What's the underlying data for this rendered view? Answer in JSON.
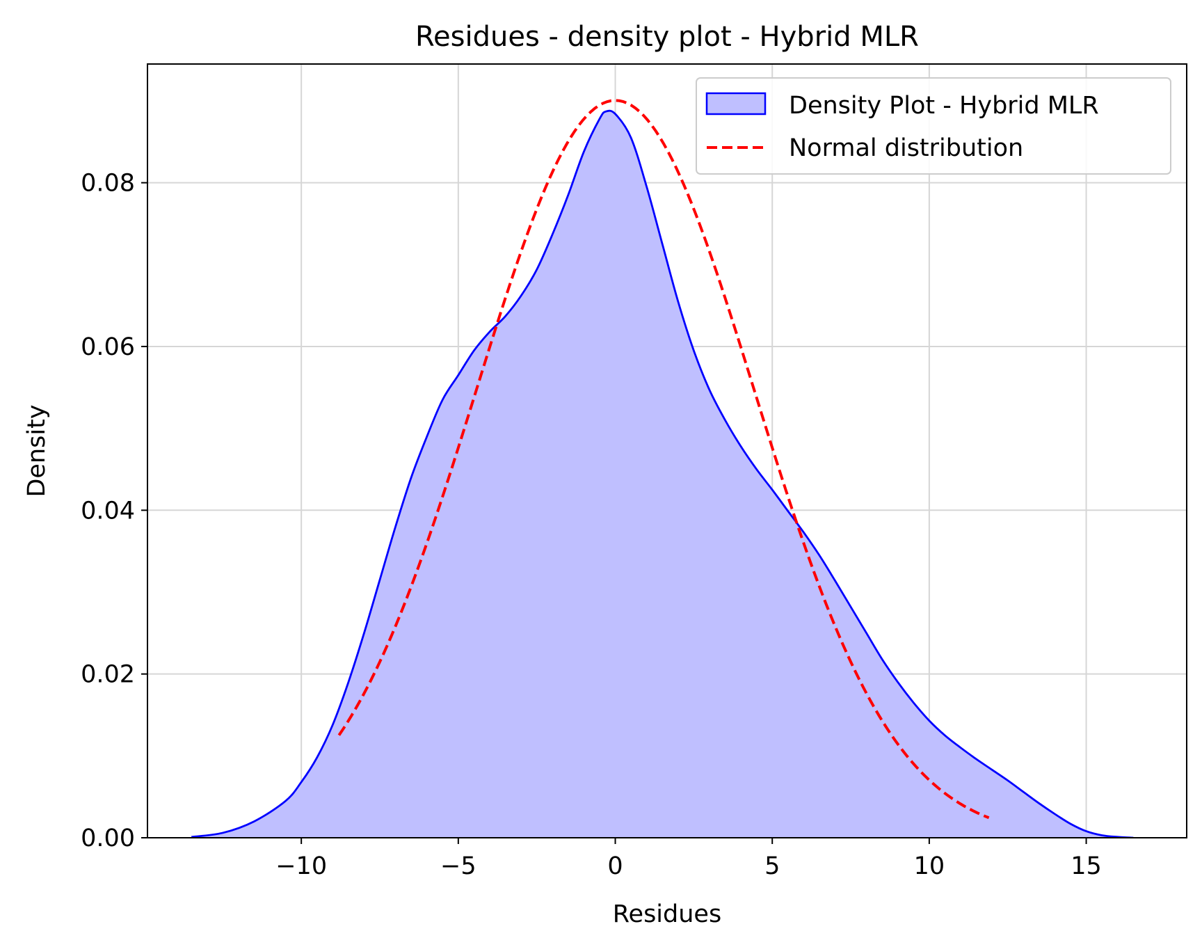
{
  "chart_data": {
    "type": "area",
    "title": "Residues - density plot - Hybrid MLR",
    "xlabel": "Residues",
    "ylabel": "Density",
    "xlim": [
      -14.9,
      18.2
    ],
    "ylim": [
      0,
      0.0945
    ],
    "xticks": [
      -10,
      -5,
      0,
      5,
      10,
      15
    ],
    "xtick_labels": [
      "−10",
      "−5",
      "0",
      "5",
      "10",
      "15"
    ],
    "yticks": [
      0,
      0.02,
      0.04,
      0.06,
      0.08
    ],
    "ytick_labels": [
      "0.00",
      "0.02",
      "0.04",
      "0.06",
      "0.08"
    ],
    "grid": true,
    "legend_position": "top-right",
    "series": [
      {
        "name": "Density Plot - Hybrid MLR",
        "kind": "filled-density",
        "color": "#0000ff",
        "fill": "#bfbfff",
        "x": [
          -13.5,
          -12.5,
          -11.5,
          -10.5,
          -10,
          -9.5,
          -9,
          -8.5,
          -8,
          -7.5,
          -7,
          -6.5,
          -6,
          -5.5,
          -5,
          -4.5,
          -4,
          -3.5,
          -3,
          -2.5,
          -2,
          -1.5,
          -1,
          -0.5,
          -0.3,
          0,
          0.5,
          1,
          1.5,
          2,
          2.5,
          3,
          3.5,
          4,
          4.5,
          5,
          5.5,
          6,
          6.5,
          7,
          7.5,
          8,
          8.5,
          9,
          9.5,
          10,
          10.5,
          11,
          11.5,
          12,
          12.5,
          13,
          13.5,
          14,
          14.5,
          15,
          15.5,
          16,
          16.5
        ],
        "y": [
          0.0001,
          0.0006,
          0.002,
          0.0045,
          0.0068,
          0.0098,
          0.0138,
          0.019,
          0.025,
          0.0315,
          0.038,
          0.044,
          0.049,
          0.0535,
          0.0565,
          0.0595,
          0.0618,
          0.0637,
          0.0662,
          0.0694,
          0.0737,
          0.0785,
          0.0838,
          0.0878,
          0.0887,
          0.0884,
          0.0855,
          0.0795,
          0.0725,
          0.0655,
          0.0595,
          0.0547,
          0.051,
          0.0478,
          0.045,
          0.0425,
          0.0399,
          0.0373,
          0.0345,
          0.0314,
          0.0282,
          0.025,
          0.0218,
          0.019,
          0.0165,
          0.0143,
          0.0125,
          0.011,
          0.0096,
          0.0083,
          0.007,
          0.0056,
          0.0042,
          0.0029,
          0.0017,
          0.0008,
          0.0003,
          0.0001,
          0.0
        ]
      },
      {
        "name": "Normal distribution",
        "kind": "dashed-line",
        "color": "#ff0000",
        "mean": 0.0,
        "std": 4.43,
        "x_range": [
          -8.8,
          11.9
        ]
      }
    ]
  }
}
